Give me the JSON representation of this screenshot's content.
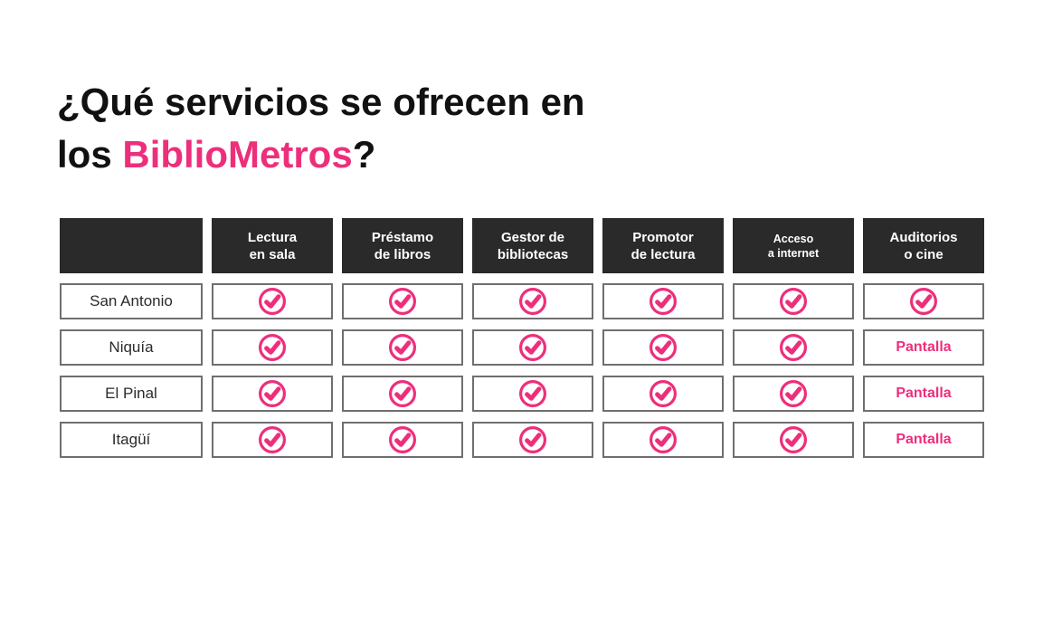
{
  "title": {
    "line1": "¿Qué servicios se ofrecen en",
    "line2_prefix": "los ",
    "line2_highlight": "BiblioMetros",
    "line2_suffix": "?"
  },
  "table": {
    "columns": [
      "Lectura\nen sala",
      "Préstamo\nde libros",
      "Gestor de\nbibliotecas",
      "Promotor\nde lectura",
      "Acceso\na internet",
      "Auditorios\no cine"
    ],
    "rows": [
      {
        "station": "San Antonio",
        "cells": [
          "check",
          "check",
          "check",
          "check",
          "check",
          "check"
        ]
      },
      {
        "station": "Niquía",
        "cells": [
          "check",
          "check",
          "check",
          "check",
          "check",
          "Pantalla"
        ]
      },
      {
        "station": "El Pinal",
        "cells": [
          "check",
          "check",
          "check",
          "check",
          "check",
          "Pantalla"
        ]
      },
      {
        "station": "Itagüí",
        "cells": [
          "check",
          "check",
          "check",
          "check",
          "check",
          "Pantalla"
        ]
      }
    ],
    "check_icon": "check-circle-icon"
  },
  "colors": {
    "accent_pink": "#ED2F7B",
    "header_bg": "#2A2A2A",
    "cell_border": "#6F6F6F",
    "title_black": "#111111"
  }
}
